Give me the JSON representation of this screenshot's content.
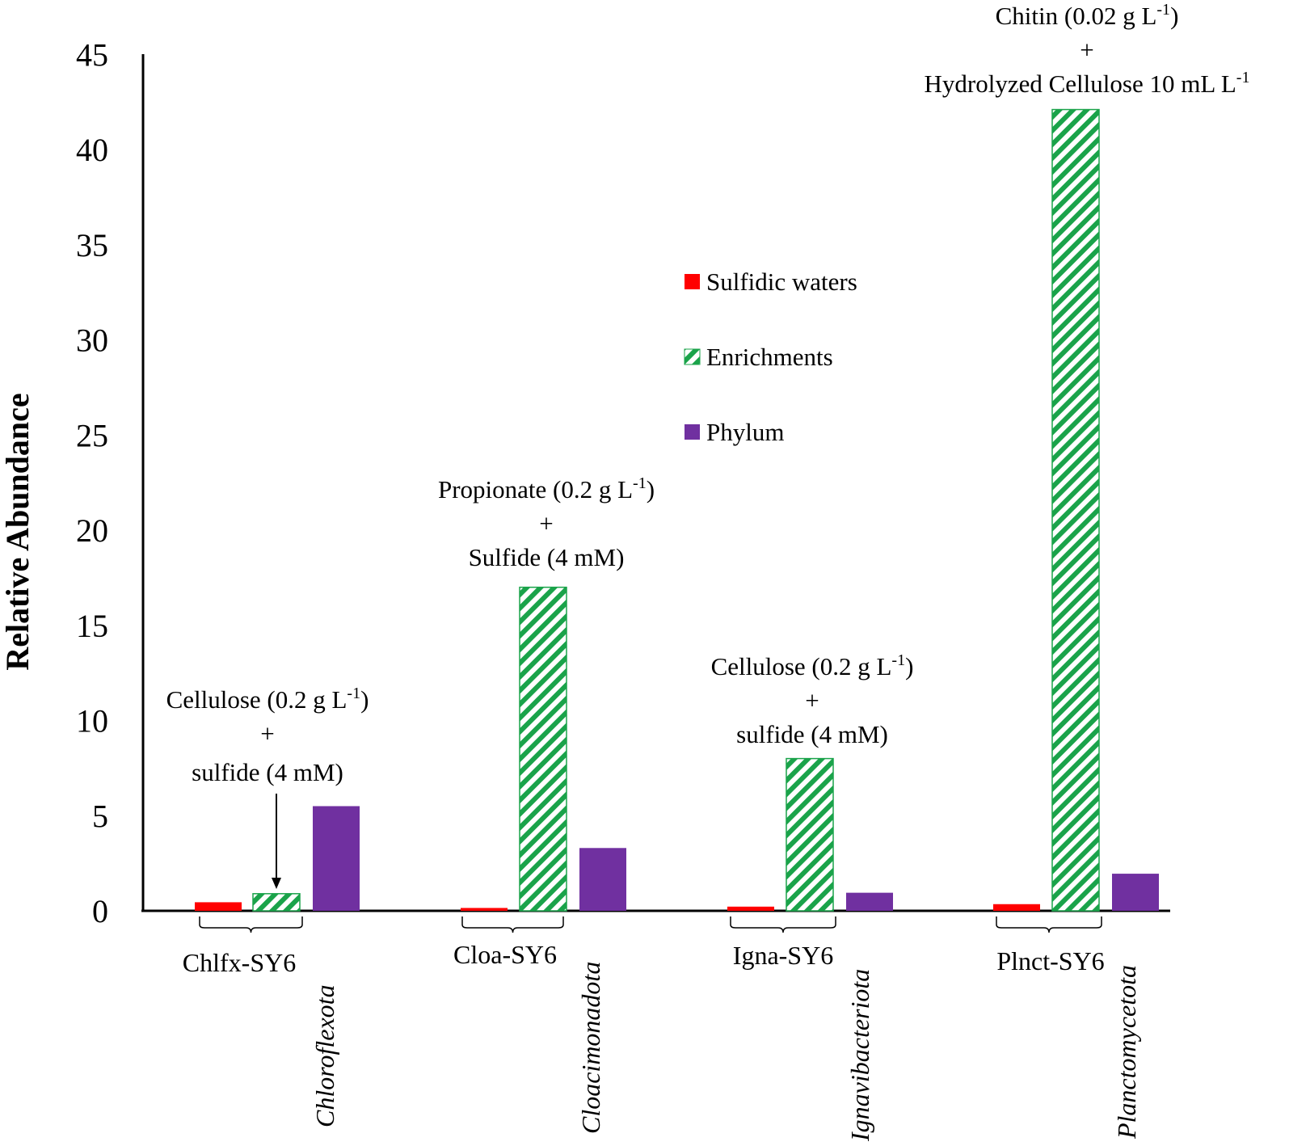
{
  "chart_data": {
    "type": "bar",
    "ylabel": "Relative Abundance",
    "ylim": [
      0,
      45
    ],
    "yticks": [
      0,
      5,
      10,
      15,
      20,
      25,
      30,
      35,
      40,
      45
    ],
    "grid": false,
    "legend": {
      "placement": "center",
      "entries": [
        {
          "name": "Sulfidic waters",
          "color": "#ff0000",
          "pattern": "solid"
        },
        {
          "name": "Enrichments",
          "color": "#1aa34a",
          "pattern": "diagonal-hatch"
        },
        {
          "name": "Phylum",
          "color": "#7030a0",
          "pattern": "solid"
        }
      ]
    },
    "groups": [
      {
        "mag": "Chlfx-SY6",
        "phylum": "Chloroflexota",
        "sulfidic_waters": 0.45,
        "enrichments": 0.9,
        "phylum_value": 5.5,
        "annotation": {
          "line1": "Cellulose (0.2 g L",
          "sup": "-1",
          "line1_end": ")",
          "plus": "+",
          "line2": "sulfide (4 mM)"
        }
      },
      {
        "mag": "Cloa-SY6",
        "phylum": "Cloacimonadota",
        "sulfidic_waters": 0.15,
        "enrichments": 17.0,
        "phylum_value": 3.3,
        "annotation": {
          "line1": "Propionate (0.2 g L",
          "sup": "-1",
          "line1_end": ")",
          "plus": "+",
          "line2": "Sulfide (4 mM)"
        }
      },
      {
        "mag": "Igna-SY6",
        "phylum": "Ignavibacteriota",
        "sulfidic_waters": 0.22,
        "enrichments": 8.0,
        "phylum_value": 0.95,
        "annotation": {
          "line1": "Cellulose (0.2 g L",
          "sup": "-1",
          "line1_end": ")",
          "plus": "+",
          "line2": "sulfide (4 mM)"
        }
      },
      {
        "mag": "Plnct-SY6",
        "phylum": "Planctomycetota",
        "sulfidic_waters": 0.35,
        "enrichments": 42.1,
        "phylum_value": 1.95,
        "annotation": {
          "line1": "Chitin (0.02 g L",
          "sup": "-1",
          "line1_end": ")",
          "plus": "+",
          "line2": "Hydrolyzed Cellulose 10 mL L",
          "line2_sup": "-1"
        }
      }
    ]
  }
}
